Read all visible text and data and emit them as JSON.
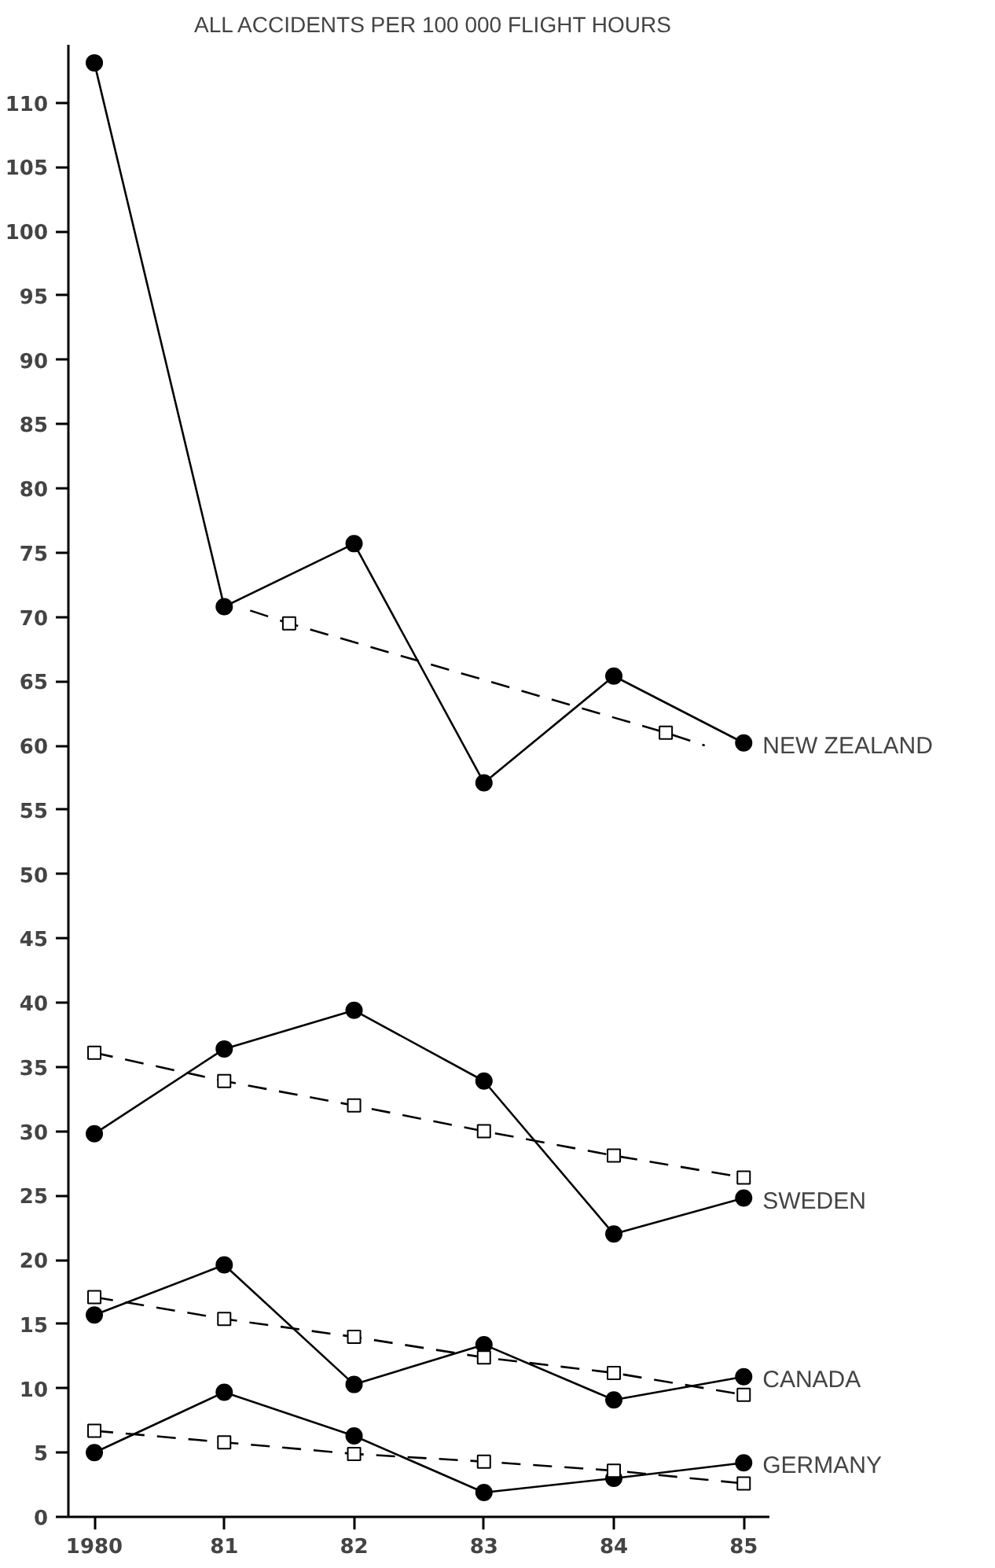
{
  "chart_data": {
    "type": "line",
    "title": "ALL ACCIDENTS PER 100 000 FLIGHT HOURS",
    "x": [
      1980,
      1981,
      1982,
      1983,
      1984,
      1985
    ],
    "xlim": [
      1979.8,
      1985.2
    ],
    "xticks": [
      {
        "value": 1980,
        "label": "1980"
      },
      {
        "value": 1981,
        "label": "81"
      },
      {
        "value": 1982,
        "label": "82"
      },
      {
        "value": 1983,
        "label": "83"
      },
      {
        "value": 1984,
        "label": "84"
      },
      {
        "value": 1985,
        "label": "85"
      }
    ],
    "ylim": [
      0,
      114.5
    ],
    "yticks": [
      0,
      5,
      10,
      15,
      20,
      25,
      30,
      35,
      40,
      45,
      50,
      55,
      60,
      65,
      70,
      75,
      80,
      85,
      90,
      95,
      100,
      105,
      110
    ],
    "grid": false,
    "series": [
      {
        "name": "NEW ZEALAND",
        "color": "#000000",
        "marker": "circle",
        "line_style": "solid",
        "values": [
          113.1,
          70.8,
          75.7,
          57.1,
          65.4,
          60.2
        ]
      },
      {
        "color": "#000000",
        "type": "line",
        "marker": "none",
        "line_style": "dashed",
        "x": [
          1981.2,
          1981.5,
          1984.4,
          1984.7
        ],
        "values": [
          70.5,
          69.5,
          61.0,
          60.0
        ]
      },
      {
        "color": "#000000",
        "type": "scatter",
        "marker": "square",
        "x": [
          1981.5,
          1984.4
        ],
        "values": [
          69.5,
          61.0
        ]
      },
      {
        "name": "SWEDEN",
        "color": "#000000",
        "marker": "circle",
        "line_style": "solid",
        "values": [
          29.8,
          36.4,
          39.4,
          33.9,
          22.0,
          24.8
        ]
      },
      {
        "color": "#000000",
        "marker": "square",
        "line_style": "dashed",
        "values": [
          36.1,
          33.9,
          32.0,
          30.0,
          28.1,
          26.4
        ]
      },
      {
        "name": "CANADA",
        "color": "#000000",
        "marker": "circle",
        "line_style": "solid",
        "values": [
          15.7,
          19.6,
          10.3,
          13.4,
          9.1,
          10.9
        ]
      },
      {
        "color": "#000000",
        "marker": "square",
        "line_style": "dashed",
        "values": [
          17.1,
          15.4,
          14.0,
          12.4,
          11.2,
          9.5
        ]
      },
      {
        "name": "GERMANY",
        "color": "#000000",
        "marker": "circle",
        "line_style": "solid",
        "values": [
          5.0,
          9.7,
          6.3,
          1.9,
          3.0,
          4.2
        ]
      },
      {
        "color": "#000000",
        "marker": "square",
        "line_style": "dashed",
        "values": [
          6.7,
          5.8,
          4.9,
          4.3,
          3.6,
          2.6
        ]
      }
    ]
  }
}
